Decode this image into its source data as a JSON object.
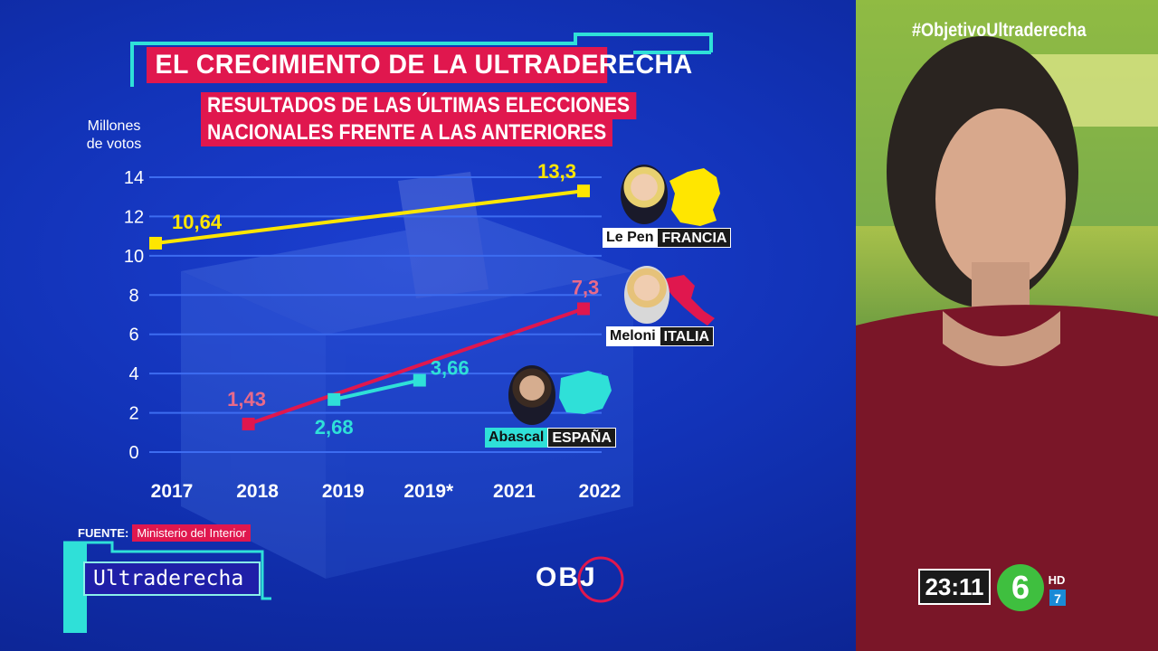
{
  "hashtag": "#ObjetivoUltraderecha",
  "title": "EL CRECIMIENTO DE LA ULTRADERECHA",
  "subtitle_line1": "RESULTADOS DE LAS ÚLTIMAS ELECCIONES",
  "subtitle_line2": "NACIONALES FRENTE A LAS ANTERIORES",
  "axis_unit_line1": "Millones",
  "axis_unit_line2": "de votos",
  "source_label": "FUENTE:",
  "source_name": "Ministerio del Interior",
  "topic_label": "Ultraderecha",
  "logo_text": "OBJ",
  "clock": "23:11",
  "channel": {
    "number": "6",
    "hd": "HD",
    "sub": "7"
  },
  "leaders": [
    {
      "name": "Le Pen",
      "country": "FRANCIA"
    },
    {
      "name": "Meloni",
      "country": "ITALIA"
    },
    {
      "name": "Abascal",
      "country": "ESPAÑA"
    }
  ],
  "colors": {
    "francia": "#ffe600",
    "italia": "#e0174e",
    "espana": "#2fe0d8",
    "background": "#1233b8",
    "accent": "#e0174e"
  },
  "chart_data": {
    "type": "line",
    "title": "EL CRECIMIENTO DE LA ULTRADERECHA",
    "subtitle": "RESULTADOS DE LAS ÚLTIMAS ELECCIONES NACIONALES FRENTE A LAS ANTERIORES",
    "ylabel": "Millones de votos",
    "xlabel": "",
    "categories": [
      "2017",
      "2018",
      "2019",
      "2019*",
      "2021",
      "2022"
    ],
    "yticks": [
      0,
      2,
      4,
      6,
      8,
      10,
      12,
      14
    ],
    "ylim": [
      0,
      14
    ],
    "grid": true,
    "legend": "labels next to line ends",
    "series": [
      {
        "name": "Le Pen FRANCIA",
        "color": "#ffe600",
        "points": [
          {
            "x": "2017",
            "y": 10.64,
            "label": "10,64"
          },
          {
            "x": "2022",
            "y": 13.3,
            "label": "13,3"
          }
        ]
      },
      {
        "name": "Meloni ITALIA",
        "color": "#e0174e",
        "points": [
          {
            "x": "2018",
            "y": 1.43,
            "label": "1,43"
          },
          {
            "x": "2022",
            "y": 7.3,
            "label": "7,3"
          }
        ]
      },
      {
        "name": "Abascal ESPAÑA",
        "color": "#2fe0d8",
        "points": [
          {
            "x": "2019",
            "y": 2.68,
            "label": "2,68"
          },
          {
            "x": "2019*",
            "y": 3.66,
            "label": "3,66"
          }
        ]
      }
    ]
  }
}
